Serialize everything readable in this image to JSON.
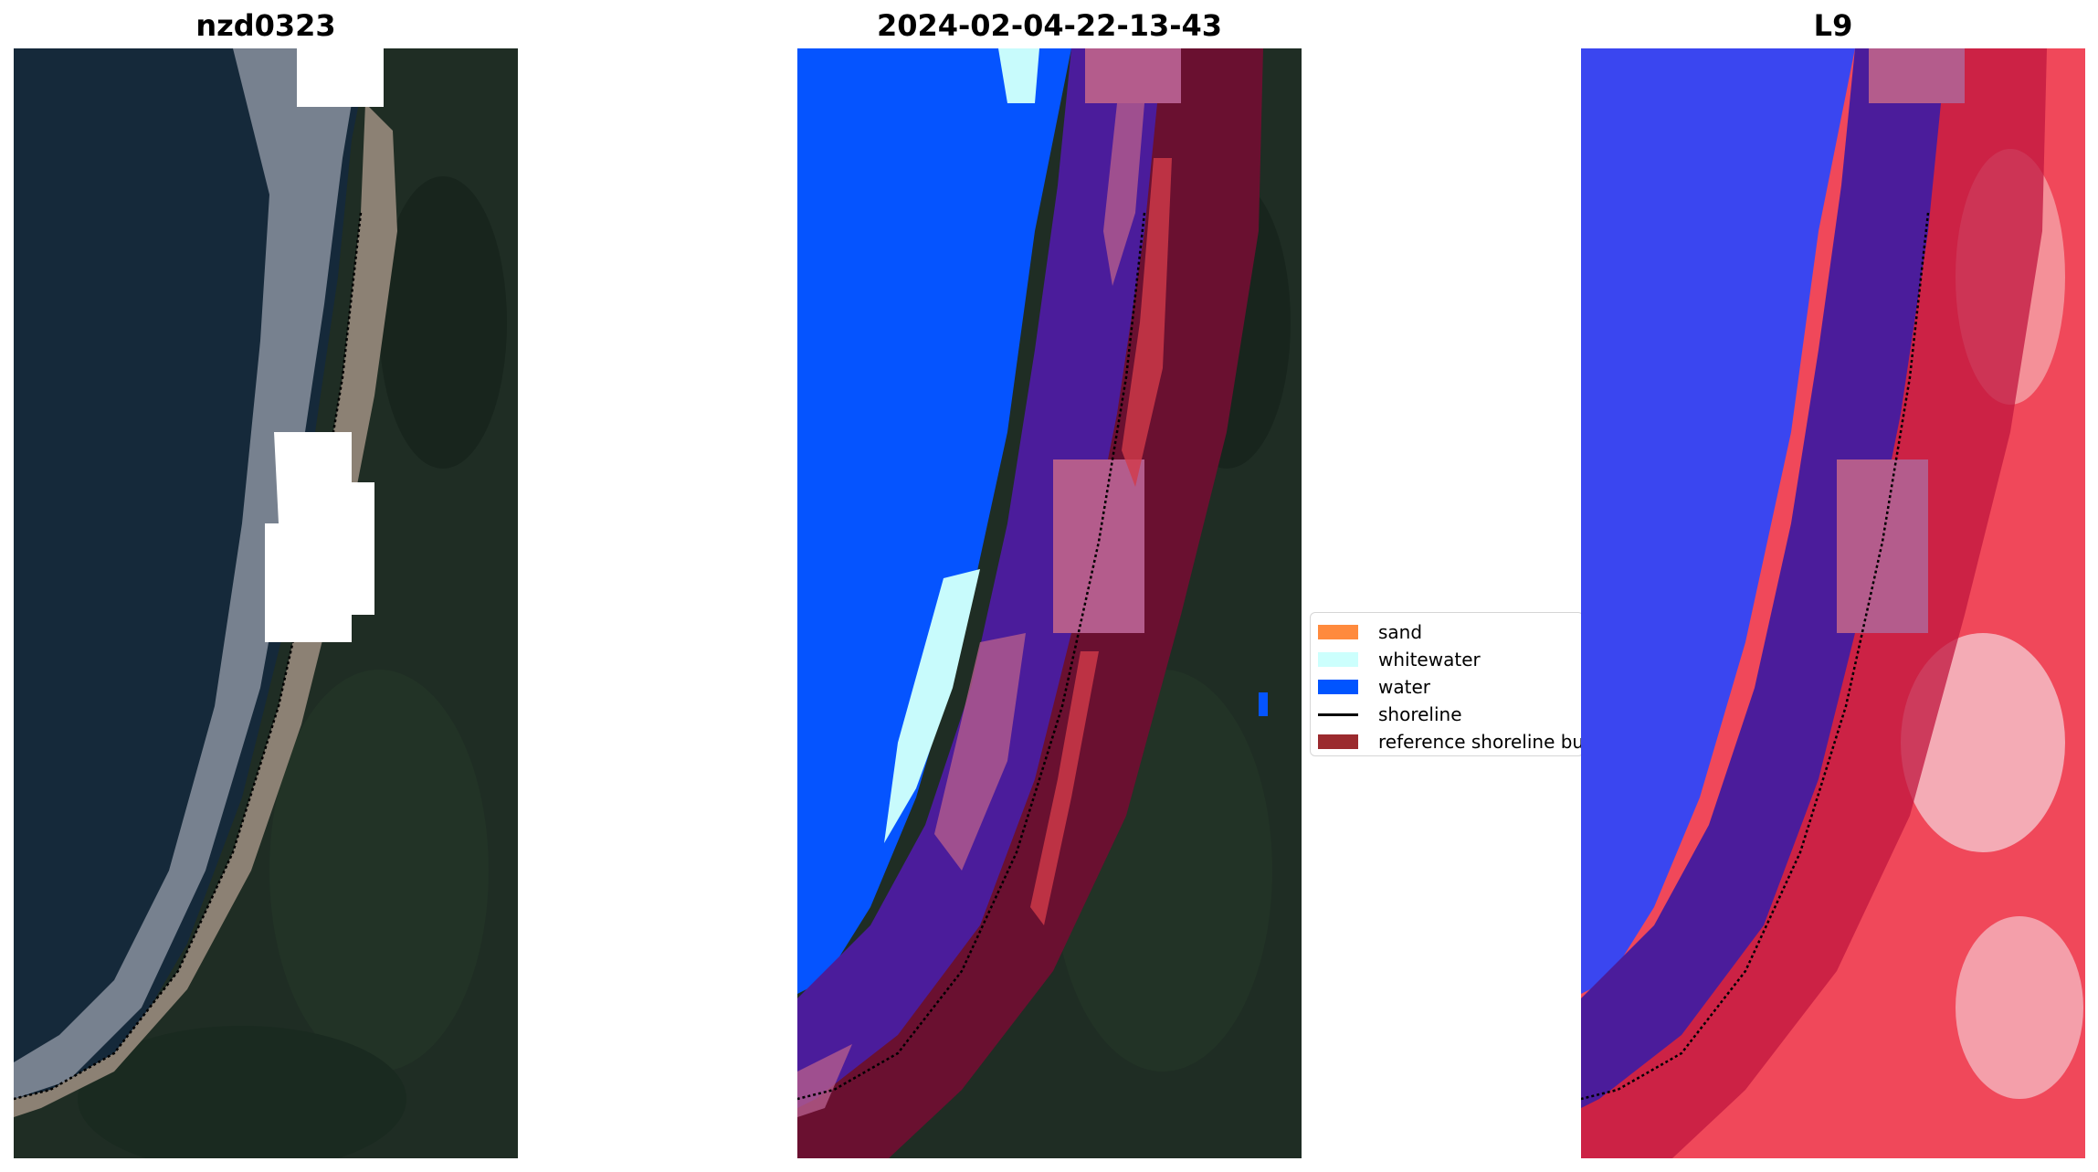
{
  "panels": [
    {
      "title": "nzd0323",
      "kind": "rgb"
    },
    {
      "title": "2024-02-04-22-13-43",
      "kind": "classified"
    },
    {
      "title": "L9",
      "kind": "index"
    }
  ],
  "legend": {
    "items": [
      {
        "label": "sand",
        "color": "#ff8a3d",
        "kind": "patch"
      },
      {
        "label": "whitewater",
        "color": "#ccfffd",
        "kind": "patch"
      },
      {
        "label": "water",
        "color": "#0054ff",
        "kind": "patch"
      },
      {
        "label": "shoreline",
        "color": "#000000",
        "kind": "line"
      },
      {
        "label": "reference shoreline bu",
        "color": "#9b2a2e",
        "kind": "patch"
      }
    ]
  },
  "colors": {
    "ocean": "#15293a",
    "land": "#1f2d24",
    "beach": "#8c8174",
    "surf": "#c9cbd6",
    "cloud_mask": "#ffffff",
    "water_class": "#0554ff",
    "whitewater_class": "#c8fbfc",
    "buffer_dark": "#6a1030",
    "buffer_light": "#b45c8c",
    "buffer_purple": "#4b1c9b",
    "index_blue": "#3a46f0",
    "index_red": "#f0485a"
  }
}
